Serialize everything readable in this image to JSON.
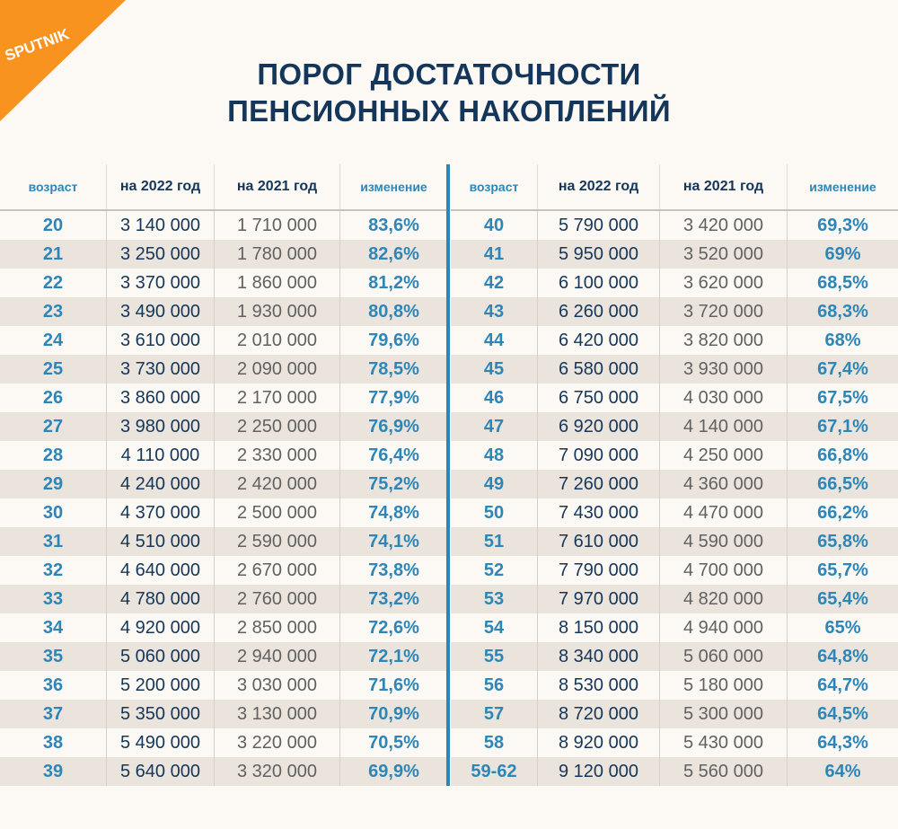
{
  "brand": {
    "logo_text": "SPUTNIK",
    "accent": "#f7931e"
  },
  "title": {
    "line1": "ПОРОГ ДОСТАТОЧНОСТИ",
    "line2": "ПЕНСИОННЫХ НАКОПЛЕНИЙ"
  },
  "colors": {
    "header_dark": "#14365a",
    "accent_blue": "#2e86b8",
    "shade_row": "#ebe4dd",
    "background": "#fcf8f3"
  },
  "chart_data": {
    "type": "table",
    "title": "ПОРОГ ДОСТАТОЧНОСТИ ПЕНСИОННЫХ НАКОПЛЕНИЙ",
    "columns": [
      "возраст",
      "на 2022 год",
      "на 2021 год",
      "изменение"
    ],
    "rows": [
      [
        "20",
        "3 140 000",
        "1 710 000",
        "83,6%"
      ],
      [
        "21",
        "3 250 000",
        "1 780 000",
        "82,6%"
      ],
      [
        "22",
        "3 370 000",
        "1 860 000",
        "81,2%"
      ],
      [
        "23",
        "3 490 000",
        "1 930 000",
        "80,8%"
      ],
      [
        "24",
        "3 610 000",
        "2 010 000",
        "79,6%"
      ],
      [
        "25",
        "3 730 000",
        "2 090 000",
        "78,5%"
      ],
      [
        "26",
        "3 860 000",
        "2 170 000",
        "77,9%"
      ],
      [
        "27",
        "3 980 000",
        "2 250 000",
        "76,9%"
      ],
      [
        "28",
        "4 110 000",
        "2 330 000",
        "76,4%"
      ],
      [
        "29",
        "4 240 000",
        "2 420 000",
        "75,2%"
      ],
      [
        "30",
        "4 370 000",
        "2 500 000",
        "74,8%"
      ],
      [
        "31",
        "4 510 000",
        "2 590 000",
        "74,1%"
      ],
      [
        "32",
        "4 640 000",
        "2 670 000",
        "73,8%"
      ],
      [
        "33",
        "4 780 000",
        "2 760 000",
        "73,2%"
      ],
      [
        "34",
        "4 920 000",
        "2 850 000",
        "72,6%"
      ],
      [
        "35",
        "5 060 000",
        "2 940 000",
        "72,1%"
      ],
      [
        "36",
        "5 200 000",
        "3 030 000",
        "71,6%"
      ],
      [
        "37",
        "5 350 000",
        "3 130 000",
        "70,9%"
      ],
      [
        "38",
        "5 490 000",
        "3 220 000",
        "70,5%"
      ],
      [
        "39",
        "5 640 000",
        "3 320 000",
        "69,9%"
      ],
      [
        "40",
        "5 790 000",
        "3 420 000",
        "69,3%"
      ],
      [
        "41",
        "5 950 000",
        "3 520 000",
        "69%"
      ],
      [
        "42",
        "6 100 000",
        "3 620 000",
        "68,5%"
      ],
      [
        "43",
        "6 260 000",
        "3 720 000",
        "68,3%"
      ],
      [
        "44",
        "6 420 000",
        "3 820 000",
        "68%"
      ],
      [
        "45",
        "6 580 000",
        "3 930 000",
        "67,4%"
      ],
      [
        "46",
        "6 750 000",
        "4 030 000",
        "67,5%"
      ],
      [
        "47",
        "6 920 000",
        "4 140 000",
        "67,1%"
      ],
      [
        "48",
        "7 090 000",
        "4 250 000",
        "66,8%"
      ],
      [
        "49",
        "7 260 000",
        "4 360 000",
        "66,5%"
      ],
      [
        "50",
        "7 430 000",
        "4 470 000",
        "66,2%"
      ],
      [
        "51",
        "7 610 000",
        "4 590 000",
        "65,8%"
      ],
      [
        "52",
        "7 790 000",
        "4 700 000",
        "65,7%"
      ],
      [
        "53",
        "7 970 000",
        "4 820 000",
        "65,4%"
      ],
      [
        "54",
        "8 150 000",
        "4 940 000",
        "65%"
      ],
      [
        "55",
        "8 340 000",
        "5 060 000",
        "64,8%"
      ],
      [
        "56",
        "8 530 000",
        "5 180 000",
        "64,7%"
      ],
      [
        "57",
        "8 720 000",
        "5 300 000",
        "64,5%"
      ],
      [
        "58",
        "8 920 000",
        "5 430 000",
        "64,3%"
      ],
      [
        "59-62",
        "9 120 000",
        "5 560 000",
        "64%"
      ]
    ]
  }
}
